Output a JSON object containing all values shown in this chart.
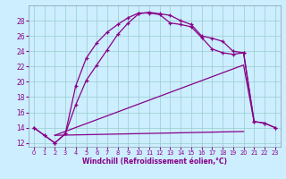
{
  "xlabel": "Windchill (Refroidissement éolien,°C)",
  "bg_color": "#cceeff",
  "line_color": "#880088",
  "grid_color": "#99cccc",
  "xlim_min": -0.5,
  "xlim_max": 23.5,
  "ylim_min": 11.5,
  "ylim_max": 30.0,
  "yticks": [
    12,
    14,
    16,
    18,
    20,
    22,
    24,
    26,
    28
  ],
  "xticks": [
    0,
    1,
    2,
    3,
    4,
    5,
    6,
    7,
    8,
    9,
    10,
    11,
    12,
    13,
    14,
    15,
    16,
    17,
    18,
    19,
    20,
    21,
    22,
    23
  ],
  "curve1_x": [
    0,
    1,
    2,
    3,
    4,
    5,
    6,
    7,
    8,
    9,
    10,
    11,
    12,
    13,
    14,
    15,
    16,
    17,
    18,
    19,
    20,
    21,
    22,
    23
  ],
  "curve1_y": [
    14.0,
    13.0,
    12.0,
    13.2,
    17.0,
    20.2,
    22.2,
    24.2,
    26.2,
    27.7,
    28.9,
    29.1,
    28.9,
    28.7,
    28.0,
    27.5,
    26.0,
    25.7,
    25.3,
    24.0,
    23.8,
    14.8,
    14.6,
    14.0
  ],
  "curve2_x": [
    0,
    1,
    2,
    3,
    4,
    5,
    6,
    7,
    8,
    9,
    10,
    11,
    12,
    13,
    14,
    15,
    16,
    17,
    18,
    19,
    20,
    21,
    22,
    23
  ],
  "curve2_y": [
    14.0,
    13.0,
    12.0,
    13.2,
    19.5,
    23.1,
    25.1,
    26.5,
    27.5,
    28.4,
    29.0,
    29.0,
    28.8,
    27.7,
    27.5,
    27.2,
    25.8,
    24.3,
    23.8,
    23.6,
    23.8,
    14.8,
    14.6,
    14.0
  ],
  "line3_x": [
    2,
    20,
    21
  ],
  "line3_y": [
    13.0,
    22.2,
    14.8
  ],
  "line4_x": [
    2,
    20
  ],
  "line4_y": [
    13.0,
    13.5
  ]
}
